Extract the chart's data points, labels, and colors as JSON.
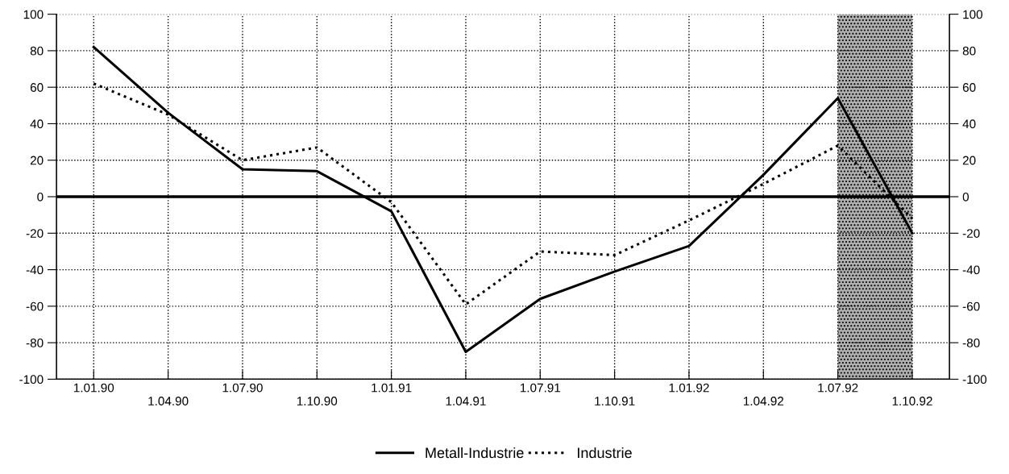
{
  "chart_data": {
    "type": "line",
    "categories": [
      "1.01.90",
      "1.04.90",
      "1.07.90",
      "1.10.90",
      "1.01.91",
      "1.04.91",
      "1.07.91",
      "1.10.91",
      "1.01.92",
      "1.04.92",
      "1.07.92",
      "1.10.92"
    ],
    "series": [
      {
        "name": "Metall-Industrie",
        "color": "#000000",
        "line_style": "solid",
        "values": [
          82,
          46,
          15,
          14,
          -8,
          -85,
          -56,
          -41,
          -27,
          12,
          54,
          -20
        ]
      },
      {
        "name": "Industrie",
        "color": "#000000",
        "line_style": "dotted",
        "values": [
          62,
          45,
          20,
          27,
          -3,
          -59,
          -30,
          -32,
          -13,
          7,
          28,
          -12
        ]
      }
    ],
    "ylim": [
      -100,
      100
    ],
    "yticks": [
      -100,
      -80,
      -60,
      -40,
      -20,
      0,
      20,
      40,
      60,
      80,
      100
    ],
    "y2lim": [
      -100,
      100
    ],
    "y2ticks": [
      -100,
      -80,
      -60,
      -40,
      -20,
      0,
      20,
      40,
      60,
      80,
      100
    ],
    "ref_lines": [
      {
        "axis": "y",
        "value": 0,
        "color": "#000000"
      }
    ],
    "bands": [
      {
        "axis": "x",
        "from": "1.07.92",
        "to": "1.10.92",
        "color": "#b0b0b0"
      }
    ],
    "grid": true,
    "legend": "bottom"
  }
}
